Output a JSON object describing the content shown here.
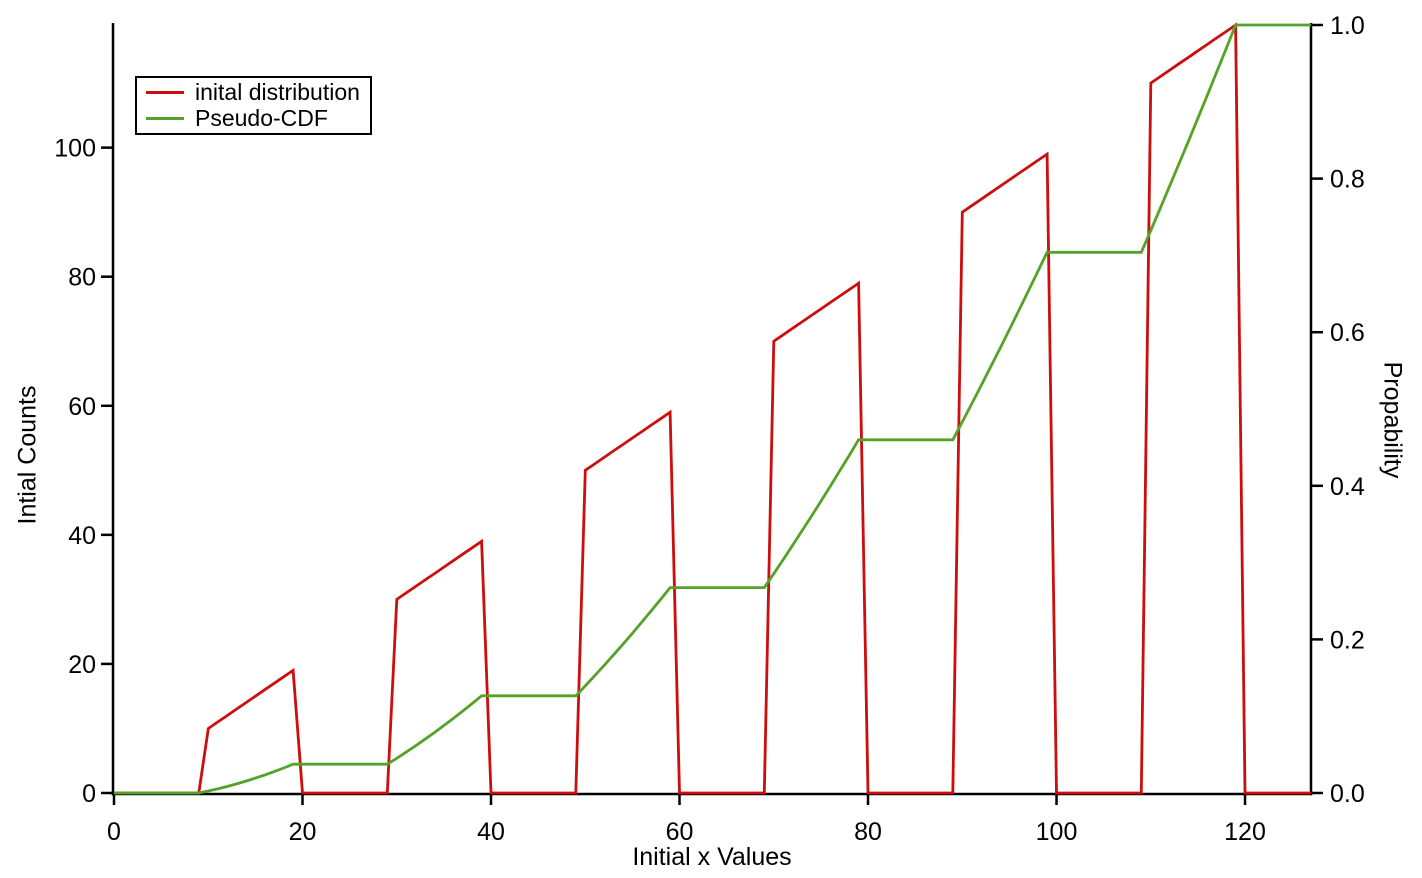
{
  "chart_data": {
    "type": "line",
    "title": "",
    "xlabel": "Initial x Values",
    "ylabel_left": "Intial Counts",
    "ylabel_right": "Propability",
    "xlim": [
      0,
      127
    ],
    "ylim_left": [
      0,
      119
    ],
    "ylim_right": [
      0,
      1.0
    ],
    "grid": false,
    "x_tick_labels": [
      "0",
      "20",
      "40",
      "60",
      "80",
      "100",
      "120"
    ],
    "x_tick_values": [
      0,
      20,
      40,
      60,
      80,
      100,
      120
    ],
    "y_tick_labels_left": [
      "0",
      "20",
      "40",
      "60",
      "80",
      "100"
    ],
    "y_tick_values_left": [
      0,
      20,
      40,
      60,
      80,
      100
    ],
    "y_tick_labels_right": [
      "0.0",
      "0.2",
      "0.4",
      "0.6",
      "0.8",
      "1.0"
    ],
    "y_tick_values_right": [
      0,
      0.2,
      0.4,
      0.6,
      0.8,
      1.0
    ],
    "legend": {
      "position": "upper left",
      "entries": [
        {
          "label": "inital distribution",
          "color": "#cc0e0e"
        },
        {
          "label": "Pseudo-CDF",
          "color": "#55a228"
        }
      ]
    },
    "x_start": 0,
    "x_step": 1,
    "series": [
      {
        "name": "inital distribution",
        "axis": "left",
        "color": "#cc0e0e",
        "values": [
          0,
          0,
          0,
          0,
          0,
          0,
          0,
          0,
          0,
          0,
          10,
          11,
          12,
          13,
          14,
          15,
          16,
          17,
          18,
          19,
          0,
          0,
          0,
          0,
          0,
          0,
          0,
          0,
          0,
          0,
          30,
          31,
          32,
          33,
          34,
          35,
          36,
          37,
          38,
          39,
          0,
          0,
          0,
          0,
          0,
          0,
          0,
          0,
          0,
          0,
          50,
          51,
          52,
          53,
          54,
          55,
          56,
          57,
          58,
          59,
          0,
          0,
          0,
          0,
          0,
          0,
          0,
          0,
          0,
          0,
          70,
          71,
          72,
          73,
          74,
          75,
          76,
          77,
          78,
          79,
          0,
          0,
          0,
          0,
          0,
          0,
          0,
          0,
          0,
          0,
          90,
          91,
          92,
          93,
          94,
          95,
          96,
          97,
          98,
          99,
          0,
          0,
          0,
          0,
          0,
          0,
          0,
          0,
          0,
          0,
          110,
          111,
          112,
          113,
          114,
          115,
          116,
          117,
          118,
          119,
          0,
          0,
          0,
          0,
          0,
          0,
          0,
          0
        ]
      },
      {
        "name": "Pseudo-CDF",
        "axis": "right",
        "color": "#55a228",
        "values": [
          0,
          0,
          0,
          0,
          0,
          0,
          0,
          0,
          0,
          0,
          0.0026,
          0.0054,
          0.0085,
          0.0119,
          0.0155,
          0.0194,
          0.0235,
          0.0279,
          0.0326,
          0.0375,
          0.0375,
          0.0375,
          0.0375,
          0.0375,
          0.0375,
          0.0375,
          0.0375,
          0.0375,
          0.0375,
          0.0375,
          0.0452,
          0.0532,
          0.0615,
          0.07,
          0.0788,
          0.0879,
          0.0972,
          0.1067,
          0.1165,
          0.1266,
          0.1266,
          0.1266,
          0.1266,
          0.1266,
          0.1266,
          0.1266,
          0.1266,
          0.1266,
          0.1266,
          0.1266,
          0.1395,
          0.1527,
          0.1661,
          0.1798,
          0.1938,
          0.208,
          0.2225,
          0.2372,
          0.2522,
          0.2674,
          0.2674,
          0.2674,
          0.2674,
          0.2674,
          0.2674,
          0.2674,
          0.2674,
          0.2674,
          0.2674,
          0.2674,
          0.2855,
          0.3039,
          0.3225,
          0.3414,
          0.3605,
          0.3798,
          0.3995,
          0.4194,
          0.4395,
          0.4599,
          0.4599,
          0.4599,
          0.4599,
          0.4599,
          0.4599,
          0.4599,
          0.4599,
          0.4599,
          0.4599,
          0.4599,
          0.4832,
          0.5067,
          0.5305,
          0.5545,
          0.5788,
          0.6034,
          0.6282,
          0.6532,
          0.6786,
          0.7041,
          0.7041,
          0.7041,
          0.7041,
          0.7041,
          0.7041,
          0.7041,
          0.7041,
          0.7041,
          0.7041,
          0.7041,
          0.7326,
          0.7612,
          0.7902,
          0.8194,
          0.8488,
          0.8786,
          0.9085,
          0.9388,
          0.9693,
          1.0,
          1.0,
          1.0,
          1.0,
          1.0,
          1.0,
          1.0,
          1.0,
          1.0
        ]
      }
    ],
    "colors": {
      "axis": "#000000",
      "background": "#ffffff",
      "red_series": "#cc0e0e",
      "green_series": "#55a228"
    }
  }
}
